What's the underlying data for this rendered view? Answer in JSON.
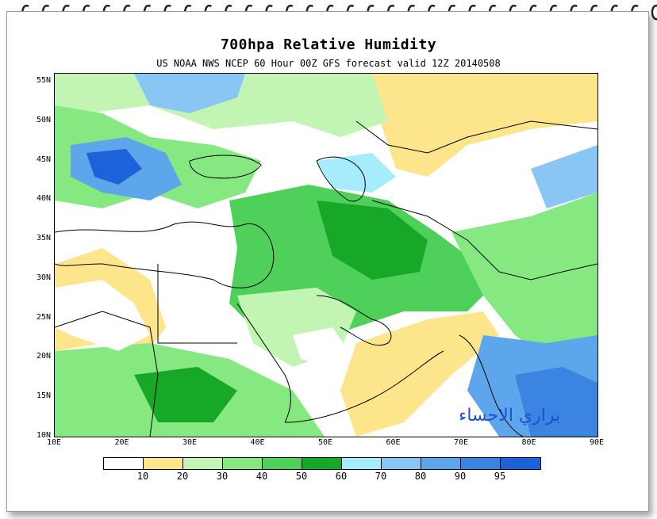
{
  "title": "700hpa Relative Humidity",
  "subtitle": "US NOAA NWS NCEP 60 Hour 00Z GFS forecast valid 12Z 20140508",
  "watermark": "براري الاحساء",
  "lat_labels": [
    "55N",
    "50N",
    "45N",
    "40N",
    "35N",
    "30N",
    "25N",
    "20N",
    "15N",
    "10N"
  ],
  "lon_labels": [
    "10E",
    "20E",
    "30E",
    "40E",
    "50E",
    "60E",
    "70E",
    "80E",
    "90E"
  ],
  "legend": {
    "labels": [
      "10",
      "20",
      "30",
      "40",
      "50",
      "60",
      "70",
      "80",
      "90",
      "95"
    ],
    "colors": [
      "#ffffff",
      "#fde58c",
      "#c2f5b3",
      "#86e880",
      "#4fd05a",
      "#18a828",
      "#a6ecfc",
      "#8ac6f4",
      "#5ea6ec",
      "#3c84e2",
      "#1c62d8"
    ]
  },
  "colors": {
    "dry": "#ffffff",
    "yellow": "#fde58c",
    "light_green": "#c2f5b3",
    "mid_green": "#86e880",
    "green": "#4fd05a",
    "dark_green": "#18a828",
    "light_blue": "#a6ecfc",
    "blue": "#5ea6ec",
    "deep_blue": "#1c62d8"
  },
  "extent": {
    "lon": [
      10,
      90
    ],
    "lat": [
      10,
      56
    ]
  }
}
